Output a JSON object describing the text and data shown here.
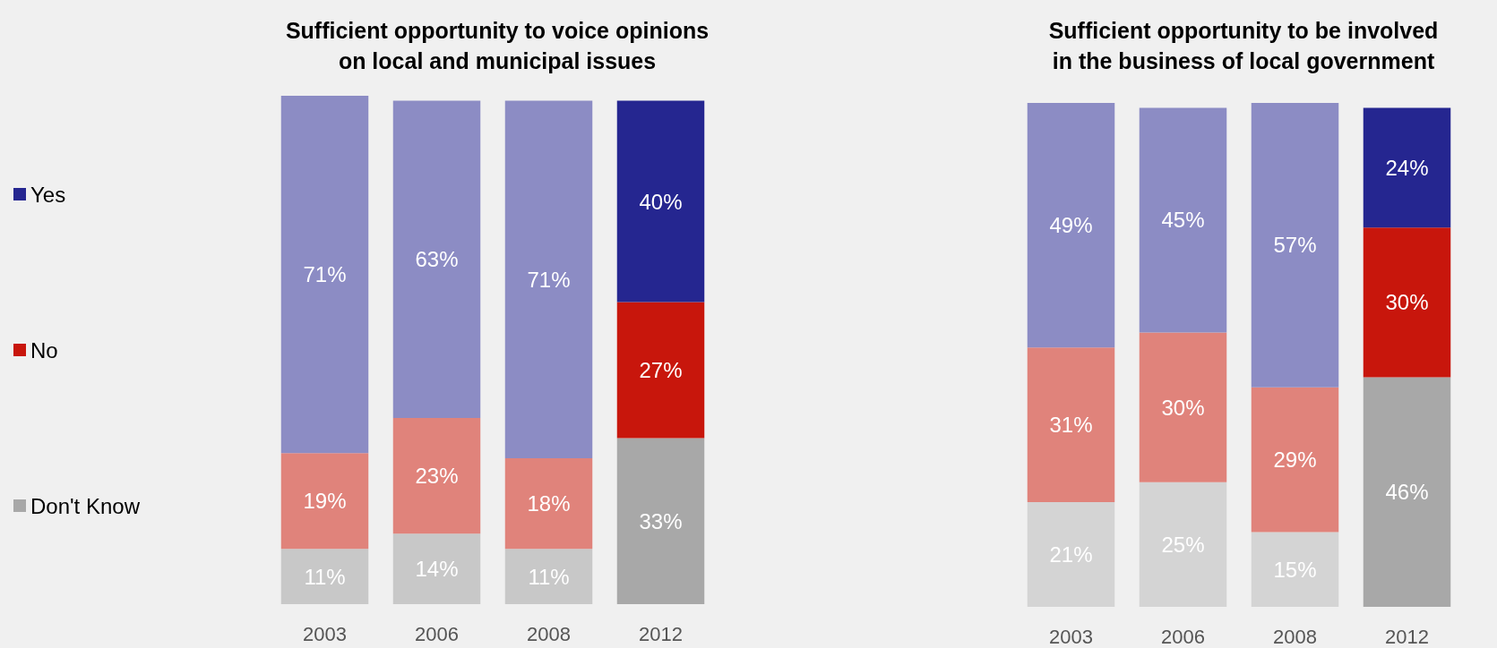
{
  "chart_data": [
    {
      "type": "bar",
      "title": "Sufficient opportunity to voice opinions\non local and municipal issues",
      "categories": [
        "2003",
        "2006",
        "2008",
        "2012"
      ],
      "stacked": true,
      "legend": "left",
      "series": [
        {
          "name": "Don't Know",
          "color": "#a8a8a8",
          "colors": [
            "#c8c8c8",
            "#c8c8c8",
            "#c8c8c8",
            "#a8a8a8"
          ],
          "values": [
            11,
            14,
            11,
            33
          ],
          "value_labels": [
            "11%",
            "14%",
            "11%",
            "33%"
          ]
        },
        {
          "name": "No",
          "color": "#c8160c",
          "colors": [
            "#e0837b",
            "#e0837b",
            "#e0837b",
            "#c8160c"
          ],
          "values": [
            19,
            23,
            18,
            27
          ],
          "value_labels": [
            "19%",
            "23%",
            "18%",
            "27%"
          ]
        },
        {
          "name": "Yes",
          "color": "#252690",
          "colors": [
            "#8c8cc4",
            "#8c8cc4",
            "#8c8cc4",
            "#252690"
          ],
          "values": [
            71,
            63,
            71,
            40
          ],
          "value_labels": [
            "71%",
            "63%",
            "71%",
            "40%"
          ]
        }
      ]
    },
    {
      "type": "bar",
      "title": "Sufficient opportunity to be involved\nin the business of local government",
      "categories": [
        "2003",
        "2006",
        "2008",
        "2012"
      ],
      "stacked": true,
      "series": [
        {
          "color": "#a8a8a8",
          "colors": [
            "#d4d4d4",
            "#d4d4d4",
            "#d4d4d4",
            "#a8a8a8"
          ],
          "values": [
            21,
            25,
            15,
            46
          ],
          "value_labels": [
            "21%",
            "25%",
            "15%",
            "46%"
          ]
        },
        {
          "color": "#c8160c",
          "colors": [
            "#e0837b",
            "#e0837b",
            "#e0837b",
            "#c8160c"
          ],
          "values": [
            31,
            30,
            29,
            30
          ],
          "value_labels": [
            "31%",
            "30%",
            "29%",
            "30%"
          ]
        },
        {
          "color": "#252690",
          "colors": [
            "#8c8cc4",
            "#8c8cc4",
            "#8c8cc4",
            "#252690"
          ],
          "values": [
            49,
            45,
            57,
            24
          ],
          "value_labels": [
            "49%",
            "45%",
            "57%",
            "24%"
          ]
        }
      ]
    }
  ]
}
